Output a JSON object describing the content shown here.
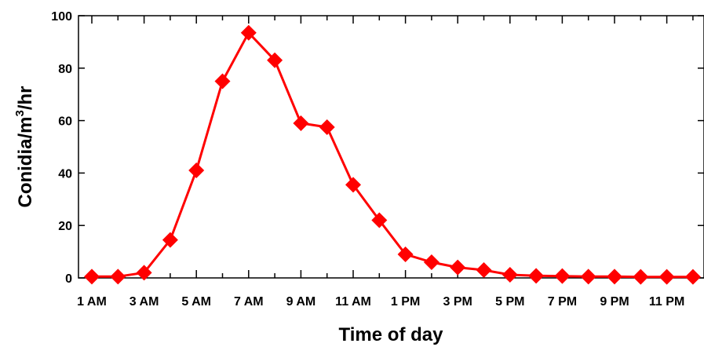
{
  "chart_data": {
    "type": "line",
    "xlabel": "Time of day",
    "ylabel": "Conidia/m³/hr",
    "ylabel_parts": {
      "base": "Conidia/m",
      "superscript": "3",
      "suffix": "/hr"
    },
    "ylim": [
      0,
      100
    ],
    "yticks": [
      0,
      20,
      40,
      60,
      80,
      100
    ],
    "grid": false,
    "legend": "none",
    "xtick_labels": [
      "1 AM",
      "3 AM",
      "5 AM",
      "7 AM",
      "9 AM",
      "11 AM",
      "1 PM",
      "3 PM",
      "5 PM",
      "7 PM",
      "9 PM",
      "11 PM"
    ],
    "series": [
      {
        "color": "#ff0000",
        "marker": "diamond",
        "x": [
          "1 AM",
          "2 AM",
          "3 AM",
          "4 AM",
          "5 AM",
          "6 AM",
          "7 AM",
          "8 AM",
          "9 AM",
          "10 AM",
          "11 AM",
          "12 PM",
          "1 PM",
          "2 PM",
          "3 PM",
          "4 PM",
          "5 PM",
          "6 PM",
          "7 PM",
          "8 PM",
          "9 PM",
          "10 PM",
          "11 PM",
          "12 AM"
        ],
        "values": [
          0.5,
          0.5,
          2,
          14.5,
          41,
          75,
          93.5,
          83,
          59,
          57.5,
          35.5,
          22,
          9,
          6,
          4,
          3,
          1.2,
          0.8,
          0.7,
          0.5,
          0.5,
          0.4,
          0.4,
          0.4
        ]
      }
    ]
  }
}
